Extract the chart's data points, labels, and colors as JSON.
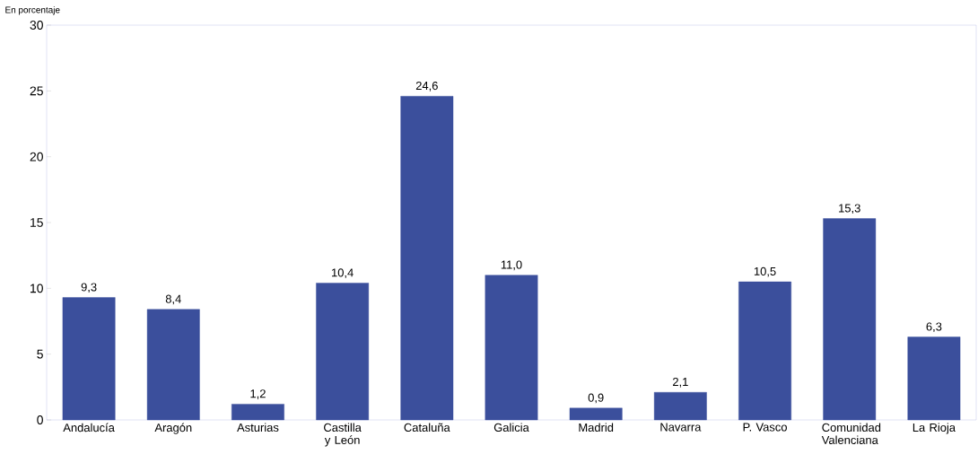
{
  "chart_data": {
    "type": "bar",
    "ylabel": "En porcentaje",
    "categories": [
      "Andalucía",
      "Aragón",
      "Asturias",
      "Castilla y León",
      "Cataluña",
      "Galicia",
      "Madrid",
      "Navarra",
      "P. Vasco",
      "Comunidad Valenciana",
      "La Rioja"
    ],
    "values": [
      9.3,
      8.4,
      1.2,
      10.4,
      24.6,
      11.0,
      0.9,
      2.1,
      10.5,
      15.3,
      6.3
    ],
    "value_labels": [
      "9,3",
      "8,4",
      "1,2",
      "10,4",
      "24,6",
      "11,0",
      "0,9",
      "2,1",
      "10,5",
      "15,3",
      "6,3"
    ],
    "color": "#3b4f9c",
    "ylim": [
      0,
      30
    ],
    "yticks": [
      0,
      5,
      10,
      15,
      20,
      25,
      30
    ],
    "grid": false
  }
}
